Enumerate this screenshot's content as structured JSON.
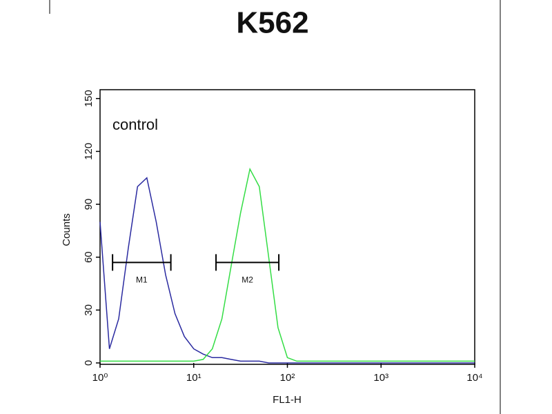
{
  "chart_data": {
    "type": "line",
    "title": "K562",
    "annotation": "control",
    "x_label": "FL1-H",
    "y_label": "Counts",
    "log_x": true,
    "xlim": [
      1,
      10000
    ],
    "ylim": [
      0,
      155
    ],
    "xticks": [
      {
        "value": 1,
        "label": "10⁰"
      },
      {
        "value": 10,
        "label": "10¹"
      },
      {
        "value": 100,
        "label": "10²"
      },
      {
        "value": 1000,
        "label": "10³"
      },
      {
        "value": 10000,
        "label": "10⁴"
      }
    ],
    "yticks": [
      0,
      30,
      60,
      90,
      120,
      150
    ],
    "x": [
      1,
      1.26,
      1.58,
      2,
      2.51,
      3.16,
      3.98,
      5.01,
      6.31,
      7.94,
      10,
      12.6,
      15.8,
      20,
      25.1,
      31.6,
      39.8,
      50.1,
      63.1,
      79.4,
      100,
      126,
      158,
      200,
      251,
      316,
      398,
      501,
      631,
      794,
      1000,
      1260,
      1580,
      2000,
      2510,
      3160,
      3980,
      5010,
      6310,
      7940,
      10000
    ],
    "series": [
      {
        "name": "control",
        "color": "#2a2aa0",
        "values": [
          80,
          8,
          25,
          65,
          100,
          105,
          80,
          50,
          28,
          15,
          8,
          5,
          3,
          3,
          2,
          1,
          1,
          1,
          0,
          0,
          0,
          0,
          0,
          0,
          0,
          0,
          0,
          0,
          0,
          0,
          0,
          0,
          0,
          0,
          0,
          0,
          0,
          0,
          0,
          0,
          0
        ]
      },
      {
        "name": "K562",
        "color": "#33dd44",
        "values": [
          1,
          1,
          1,
          1,
          1,
          1,
          1,
          1,
          1,
          1,
          1,
          2,
          8,
          25,
          55,
          85,
          110,
          100,
          60,
          20,
          3,
          1,
          1,
          1,
          1,
          1,
          1,
          1,
          1,
          1,
          1,
          1,
          1,
          1,
          1,
          1,
          1,
          1,
          1,
          1,
          1
        ]
      }
    ],
    "markers": [
      {
        "label": "M1",
        "range": [
          1.36,
          5.7
        ],
        "y": 57
      },
      {
        "label": "M2",
        "range": [
          17.3,
          81
        ],
        "y": 57
      }
    ]
  }
}
